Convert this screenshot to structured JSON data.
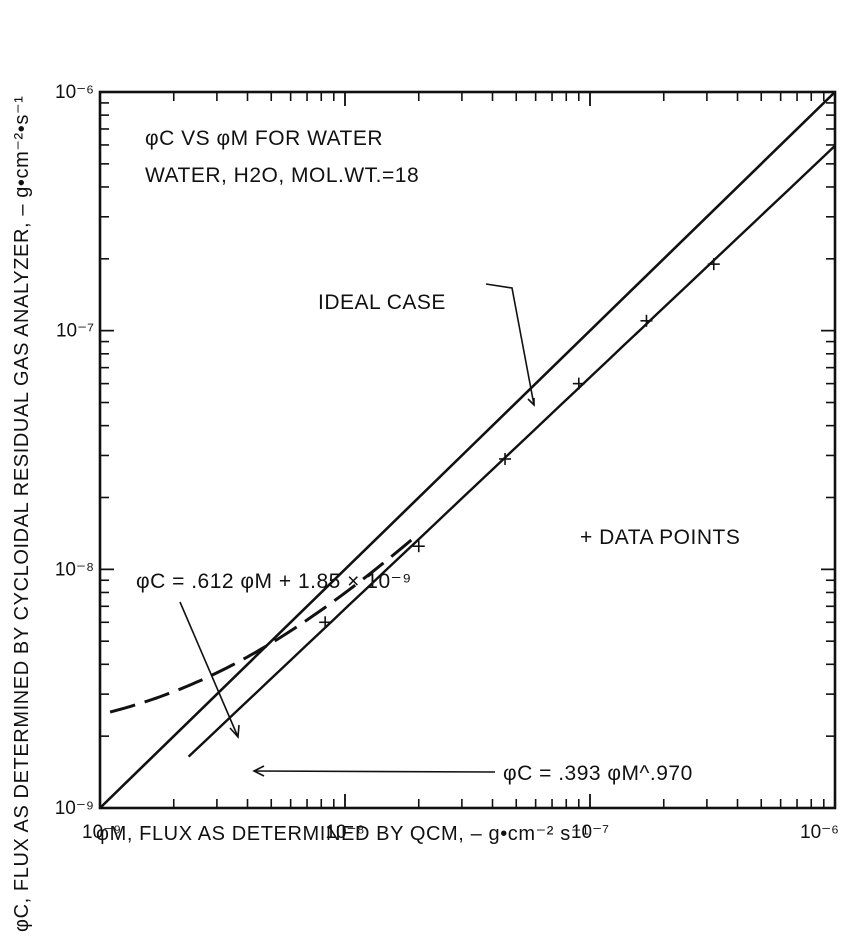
{
  "chart_data": {
    "type": "scatter",
    "title": "",
    "xlabel": "φM, FLUX AS DETERMINED BY QCM, – g•cm⁻² s⁻¹",
    "ylabel": "φC, FLUX AS DETERMINED BY CYCLOIDAL RESIDUAL GAS ANALYZER, – g•cm⁻²•s⁻¹",
    "xscale": "log",
    "yscale": "log",
    "xlim": [
      1e-09,
      1e-06
    ],
    "ylim": [
      1e-09,
      1e-06
    ],
    "grid": false,
    "x_ticks": [
      {
        "value": 1e-09,
        "label": "10⁻⁹"
      },
      {
        "value": 1e-08,
        "label": "10⁻⁸"
      },
      {
        "value": 1e-07,
        "label": "10⁻⁷"
      },
      {
        "value": 1e-06,
        "label": "10⁻⁶"
      }
    ],
    "y_ticks": [
      {
        "value": 1e-09,
        "label": "10⁻⁹"
      },
      {
        "value": 1e-08,
        "label": "10⁻⁸"
      },
      {
        "value": 1e-07,
        "label": "10⁻⁷"
      },
      {
        "value": 1e-06,
        "label": "10⁻⁶"
      }
    ],
    "points": [
      {
        "x": 8.3e-09,
        "y": 6e-09
      },
      {
        "x": 2e-08,
        "y": 1.25e-08
      },
      {
        "x": 4.5e-08,
        "y": 2.9e-08
      },
      {
        "x": 9e-08,
        "y": 6e-08
      },
      {
        "x": 1.7e-07,
        "y": 1.1e-07
      },
      {
        "x": 3.2e-07,
        "y": 1.9e-07
      }
    ],
    "curves": {
      "ideal": {
        "x_range": [
          1e-09,
          1e-06
        ]
      },
      "power_fit": {
        "coef": 0.393,
        "exponent": 0.97,
        "x_range": [
          2.3e-09,
          1e-06
        ]
      },
      "linear_fit": {
        "slope": 0.612,
        "intercept": 1.85e-09,
        "x_range": [
          1.1e-09,
          1.9e-08
        ]
      }
    },
    "annotations": {
      "line1": "φC VS φM FOR WATER",
      "line2": "WATER, H2O, MOL.WT.=18",
      "ideal_case": "IDEAL CASE",
      "data_points": "+ DATA POINTS",
      "linear_eq": "φC = .612 φM + 1.85 × 10⁻⁹",
      "power_eq": "φC = .393 φM^.970"
    }
  }
}
